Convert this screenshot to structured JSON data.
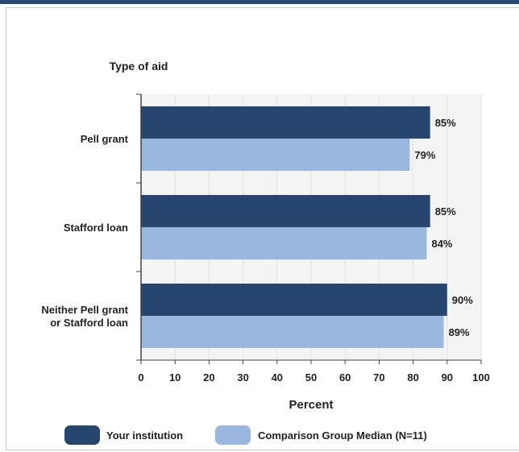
{
  "colors": {
    "primary": "#27466f",
    "secondary": "#9ab8df",
    "plot_bg": "#f4f4f4",
    "grid": "#e3e3e3",
    "axis": "#444444",
    "text": "#222222",
    "header_bar": "#2b4a73"
  },
  "chart_data": {
    "type": "bar",
    "orientation": "horizontal",
    "title": "",
    "category_axis_title": "Type of aid",
    "xlabel": "Percent",
    "ylabel": "",
    "xlim": [
      0,
      100
    ],
    "xticks": [
      0,
      10,
      20,
      30,
      40,
      50,
      60,
      70,
      80,
      90,
      100
    ],
    "categories": [
      "Pell grant",
      "Stafford loan",
      "Neither Pell grant\nor Stafford loan"
    ],
    "series": [
      {
        "name": "Your institution",
        "values": [
          85,
          85,
          90
        ],
        "labels": [
          "85%",
          "85%",
          "90%"
        ]
      },
      {
        "name": "Comparison Group Median (N=11)",
        "values": [
          79,
          84,
          89
        ],
        "labels": [
          "79%",
          "84%",
          "89%"
        ]
      }
    ],
    "grid": true,
    "legend": "bottom"
  }
}
